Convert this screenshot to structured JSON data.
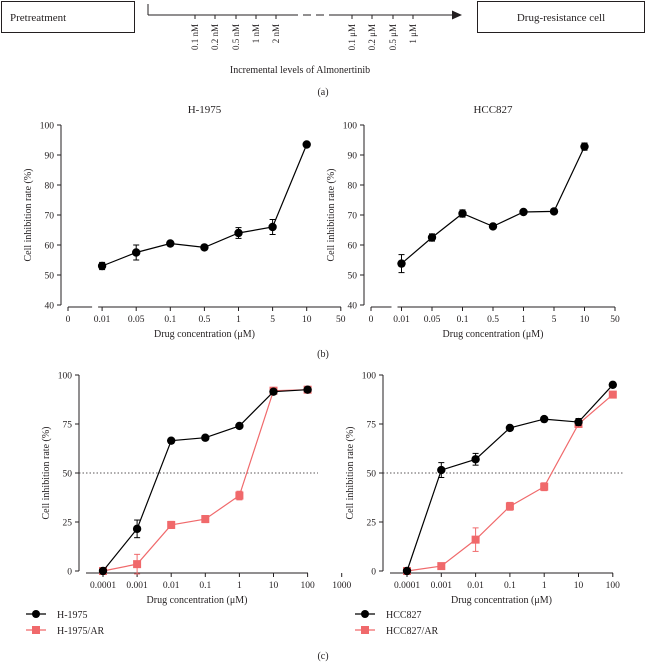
{
  "panel_a": {
    "left_box": "Pretreatment",
    "right_box": "Drug-resistance cell",
    "ticks_left": [
      "0.1 nM",
      "0.2 nM",
      "0.5 nM",
      "1 nM",
      "2 nM"
    ],
    "ticks_right": [
      "0.1 μM",
      "0.2 μM",
      "0.5 μM",
      "1 μM"
    ],
    "axis_caption": "Incremental levels of Almonertinib",
    "label": "(a)"
  },
  "panel_b_label": "(b)",
  "panel_c_label": "(c)",
  "chart_data": [
    {
      "id": "b1",
      "type": "line",
      "title": "H-1975",
      "xlabel": "Drug concentration (μM)",
      "ylabel": "Cell inhibition rate (%)",
      "x_ticks": [
        "0",
        "0.01",
        "0.05",
        "0.1",
        "0.5",
        "1",
        "5",
        "10",
        "50"
      ],
      "ylim": [
        40,
        100
      ],
      "y_ticks": [
        40,
        50,
        60,
        70,
        80,
        90,
        100
      ],
      "series": [
        {
          "name": "H-1975",
          "color": "#000000",
          "marker": "circle",
          "x": [
            "0.01",
            "0.05",
            "0.1",
            "0.5",
            "1",
            "5",
            "10"
          ],
          "values": [
            53,
            57.5,
            60.5,
            59.2,
            64,
            66,
            93.5
          ],
          "errors": [
            1.2,
            2.5,
            0.8,
            0.7,
            1.8,
            2.5,
            0.5
          ]
        }
      ]
    },
    {
      "id": "b2",
      "type": "line",
      "title": "HCC827",
      "xlabel": "Drug concentration (μM)",
      "ylabel": "Cell inhibition rate (%)",
      "x_ticks": [
        "0",
        "0.01",
        "0.05",
        "0.1",
        "0.5",
        "1",
        "5",
        "10",
        "50"
      ],
      "ylim": [
        40,
        100
      ],
      "y_ticks": [
        40,
        50,
        60,
        70,
        80,
        90,
        100
      ],
      "series": [
        {
          "name": "HCC827",
          "color": "#000000",
          "marker": "circle",
          "x": [
            "0.01",
            "0.05",
            "0.1",
            "0.5",
            "1",
            "5",
            "10"
          ],
          "values": [
            53.8,
            62.5,
            70.5,
            66.2,
            71,
            71.2,
            92.8
          ],
          "errors": [
            3.0,
            1.2,
            1.2,
            0.6,
            0.6,
            0.5,
            1.2
          ]
        }
      ]
    },
    {
      "id": "c1",
      "type": "line",
      "xlabel": "Drug concentration (μM)",
      "ylabel": "Cell inhibition rate (%)",
      "x_ticks": [
        "0.0001",
        "0.001",
        "0.01",
        "0.1",
        "1",
        "10",
        "100",
        "1000"
      ],
      "ylim": [
        0,
        100
      ],
      "y_ticks": [
        0,
        25,
        50,
        75,
        100
      ],
      "reference_line": 50,
      "series": [
        {
          "name": "H-1975",
          "color": "#000000",
          "marker": "circle",
          "x": [
            "0.0001",
            "0.001",
            "0.01",
            "0.1",
            "1",
            "10",
            "100"
          ],
          "values": [
            0,
            21.5,
            66.5,
            68,
            74,
            91.5,
            92.5
          ],
          "errors": [
            0,
            4.5,
            0.8,
            0.8,
            0.8,
            1.2,
            1.0
          ]
        },
        {
          "name": "H-1975/AR",
          "color": "#f0696b",
          "marker": "square",
          "x": [
            "0.0001",
            "0.001",
            "0.01",
            "0.1",
            "1",
            "10",
            "100"
          ],
          "values": [
            0,
            3.5,
            23.5,
            26.5,
            38.5,
            92,
            92.5
          ],
          "errors": [
            0,
            5.0,
            1.8,
            1.8,
            2.2,
            1.2,
            1.0
          ]
        }
      ]
    },
    {
      "id": "c2",
      "type": "line",
      "xlabel": "Drug concentration (μM)",
      "ylabel": "Cell inhibition rate (%)",
      "x_ticks": [
        "0.0001",
        "0.001",
        "0.01",
        "0.1",
        "1",
        "10",
        "100"
      ],
      "ylim": [
        0,
        100
      ],
      "y_ticks": [
        0,
        25,
        50,
        75,
        100
      ],
      "reference_line": 50,
      "series": [
        {
          "name": "HCC827",
          "color": "#000000",
          "marker": "circle",
          "x": [
            "0.0001",
            "0.001",
            "0.01",
            "0.1",
            "1",
            "10",
            "100"
          ],
          "values": [
            0,
            51.5,
            57,
            73,
            77.5,
            76,
            95
          ],
          "errors": [
            0,
            3.8,
            3.0,
            0.8,
            0.8,
            1.8,
            0.8
          ]
        },
        {
          "name": "HCC827/AR",
          "color": "#f0696b",
          "marker": "square",
          "x": [
            "0.0001",
            "0.001",
            "0.01",
            "0.1",
            "1",
            "10",
            "100"
          ],
          "values": [
            0,
            2.5,
            16,
            33,
            43,
            75,
            90
          ],
          "errors": [
            0,
            1.0,
            6.0,
            2.0,
            2.0,
            1.5,
            1.0
          ]
        }
      ]
    }
  ]
}
